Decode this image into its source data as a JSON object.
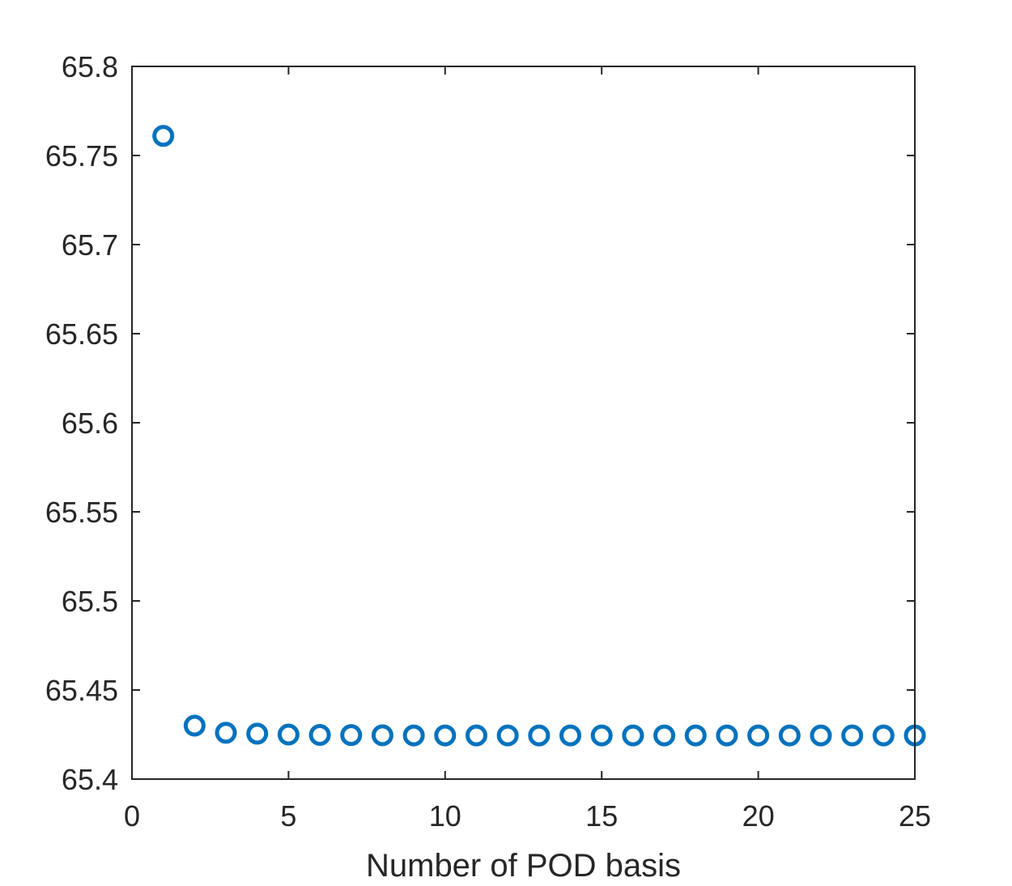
{
  "chart_data": {
    "type": "scatter",
    "title": "",
    "xlabel": "Number of POD basis",
    "ylabel": "",
    "xlim": [
      0,
      25
    ],
    "ylim": [
      65.4,
      65.8
    ],
    "xticks": [
      "0",
      "5",
      "10",
      "15",
      "20",
      "25"
    ],
    "yticks": [
      "65.4",
      "65.45",
      "65.5",
      "65.55",
      "65.6",
      "65.65",
      "65.7",
      "65.75",
      "65.8"
    ],
    "grid": false,
    "marker": "open-circle",
    "marker_color": "#0072BD",
    "axis_color": "#262626",
    "series": [
      {
        "x": [
          1,
          2,
          3,
          4,
          5,
          6,
          7,
          8,
          9,
          10,
          11,
          12,
          13,
          14,
          15,
          16,
          17,
          18,
          19,
          20,
          21,
          22,
          23,
          24,
          25
        ],
        "y": [
          65.761,
          65.43,
          65.426,
          65.4255,
          65.425,
          65.4248,
          65.4247,
          65.4246,
          65.4245,
          65.4245,
          65.4245,
          65.4245,
          65.4245,
          65.4245,
          65.4245,
          65.4245,
          65.4245,
          65.4245,
          65.4245,
          65.4245,
          65.4245,
          65.4245,
          65.4245,
          65.4245,
          65.4245
        ]
      }
    ]
  }
}
